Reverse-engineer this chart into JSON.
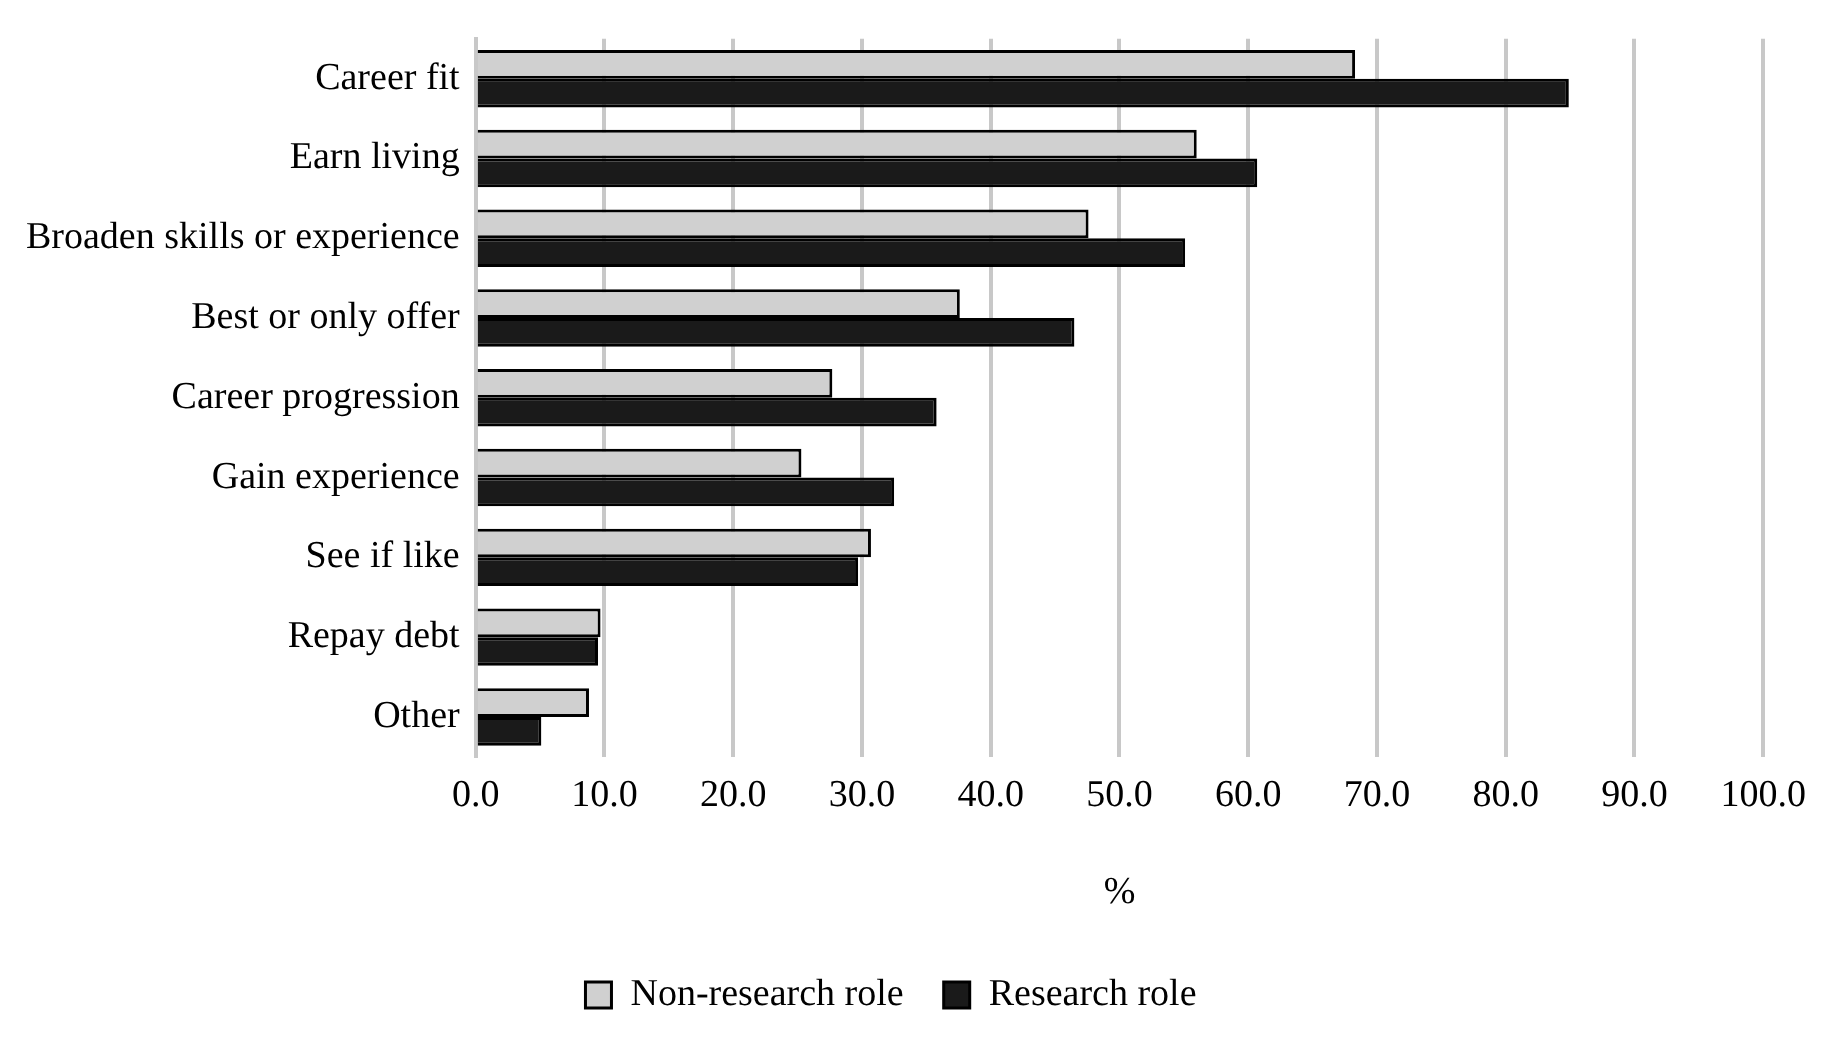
{
  "chart_data": {
    "type": "bar",
    "orientation": "horizontal",
    "xlabel": "%",
    "categories": [
      "Career fit",
      "Earn living",
      "Broaden skills or experience",
      "Best or only offer",
      "Career progression",
      "Gain experience",
      "See if like",
      "Repay debt",
      "Other"
    ],
    "series": [
      {
        "name": "Non-research role",
        "color": "#d0d0d0",
        "values": [
          68.3,
          56.0,
          47.6,
          37.6,
          27.7,
          25.3,
          30.7,
          9.7,
          8.8
        ]
      },
      {
        "name": "Research role",
        "color": "#1a1a1a",
        "values": [
          84.9,
          60.7,
          55.1,
          46.5,
          35.8,
          32.5,
          29.7,
          9.5,
          5.1
        ]
      }
    ],
    "xlim": [
      0,
      100
    ],
    "xticks": [
      {
        "value": 0,
        "label": "0.0"
      },
      {
        "value": 10,
        "label": "10.0"
      },
      {
        "value": 20,
        "label": "20.0"
      },
      {
        "value": 30,
        "label": "30.0"
      },
      {
        "value": 40,
        "label": "40.0"
      },
      {
        "value": 50,
        "label": "50.0"
      },
      {
        "value": 60,
        "label": "60.0"
      },
      {
        "value": 70,
        "label": "70.0"
      },
      {
        "value": 80,
        "label": "80.0"
      },
      {
        "value": 90,
        "label": "90.0"
      },
      {
        "value": 100,
        "label": "100.0"
      }
    ],
    "grid": "x",
    "legend": "bottom"
  }
}
